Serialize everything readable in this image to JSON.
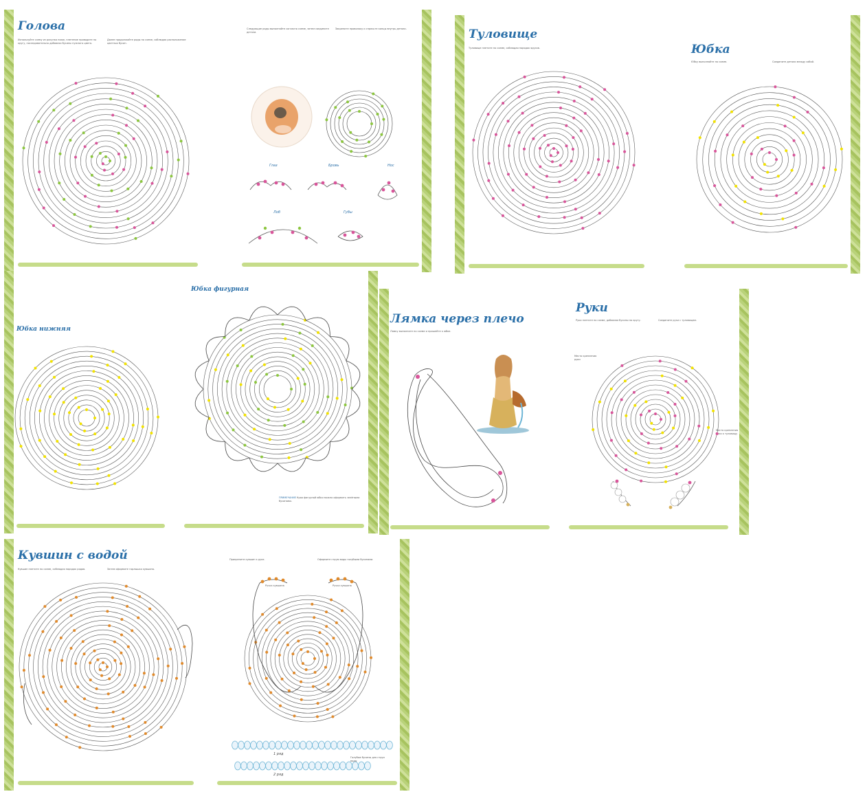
{
  "spreads": [
    {
      "title": "Голова",
      "intro_left": "Используйте схему из рисунка ниже, плетение проводите по кругу, последовательно добавляя бусины нужного цвета.",
      "intro_mid": "Далее продолжайте ряды по схеме, соблюдая расположение цветных бусин.",
      "intro_right_a": "Следующие ряды выполняйте согласно схеме, затем соедините детали.",
      "intro_right_b": "Закрепите проволоку и спрячьте концы внутрь детали.",
      "labels": [
        "Глаз",
        "Бровь",
        "Нос",
        "Лоб",
        "Губы"
      ]
    },
    {
      "title": "Туловище",
      "intro": "Туловище плетите по схеме, соблюдая порядок ярусов.",
      "title2": "Юбка",
      "intro2": "Юбку выполняйте по схеме.",
      "intro3": "Соедините детали между собой."
    },
    {
      "title_left": "Юбка нижняя",
      "title_right": "Юбка фигурная",
      "note_label": "ПРИМЕЧАНИЕ",
      "note": "Края фигурной юбки можно оформить зелёными бусинами."
    },
    {
      "title": "Лямка через плечо",
      "intro": "Лямку выполните по схеме и пришейте к юбке.",
      "title2": "Руки",
      "intro2": "Руки плетите по схеме, добавляя бусины по кругу.",
      "intro3": "Соедините руки с туловищем.",
      "side_a": "Место крепления руки",
      "side_b": "Место крепления руки к туловищу"
    },
    {
      "title": "Кувшин с водой",
      "intro": "Кувшин плетите по схеме, соблюдая порядок рядов.",
      "intro2": "Затем оформите горлышко кувшина.",
      "intro3": "Прикрепите кувшин к руке.",
      "intro4": "Оформите струю воды голубыми бусинами.",
      "handle_a": "Ручка кувшина",
      "handle_b": "Ручка кувшина",
      "row_a": "1 ряд",
      "row_b": "2 ряд",
      "water_note": "Голубые бусины для струи воды"
    }
  ],
  "colors": {
    "green": "#8cc63f",
    "pink": "#d8559a",
    "yellow": "#f2e200",
    "orange": "#e08a2c",
    "blue": "#2a6fa8",
    "strip": "#b9d27a"
  }
}
